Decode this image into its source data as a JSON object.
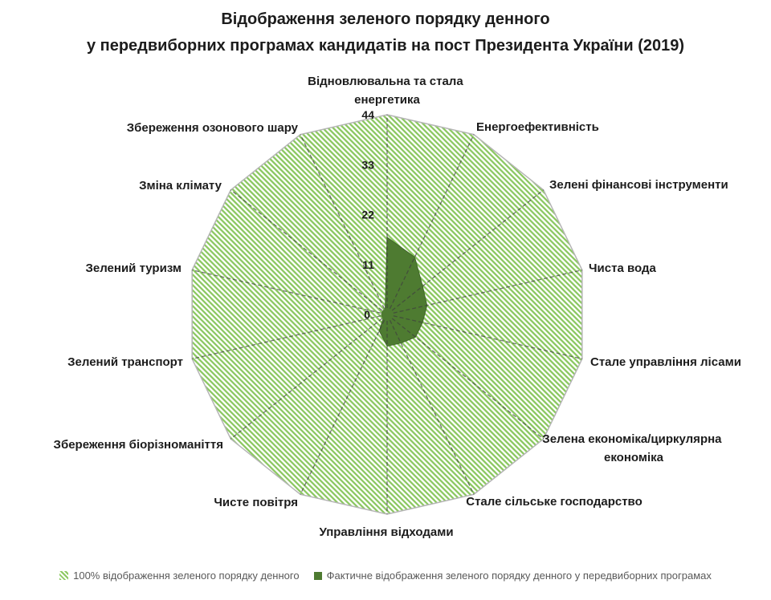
{
  "title": {
    "line1": "Відображення зеленого порядку денного",
    "line2": "у передвиборних програмах кандидатів на пост Президента України (2019)"
  },
  "chart_data": {
    "type": "radar",
    "title": "Відображення зеленого порядку денного у передвиборних програмах кандидатів на пост Президента України (2019)",
    "categories": [
      "Відновлювальна та стала енергетика",
      "Енергоефективність",
      "Зелені фінансові інструменти",
      "Чиста вода",
      "Стале управління лісами",
      "Зелена економіка/циркулярна економіка",
      "Стале сільське господарство",
      "Управління відходами",
      "Чисте повітря",
      "Збереження біорізноманіття",
      "Зелений транспорт",
      "Зелений туризм",
      "Зміна клімату",
      "Збереження озонового шару"
    ],
    "categories_display": [
      [
        "Відновлювальна та стала",
        "енергетика"
      ],
      [
        "Енергоефективність"
      ],
      [
        "Зелені фінансові інструменти"
      ],
      [
        "Чиста вода"
      ],
      [
        "Стале управління лісами"
      ],
      [
        "Зелена економіка/циркулярна",
        "економіка"
      ],
      [
        "Стале сільське господарство"
      ],
      [
        "Управління відходами"
      ],
      [
        "Чисте повітря"
      ],
      [
        "Збереження біорізноманіття"
      ],
      [
        "Зелений транспорт"
      ],
      [
        "Зелений туризм"
      ],
      [
        "Зміна клімату"
      ],
      [
        "Збереження озонового шару"
      ]
    ],
    "series": [
      {
        "name": "100% відображення зеленого порядку денного",
        "fill": "hatched",
        "color": "#8cc862",
        "values": [
          44,
          44,
          44,
          44,
          44,
          44,
          44,
          44,
          44,
          44,
          44,
          44,
          44,
          44
        ]
      },
      {
        "name": "Фактичне відображення зеленого порядку денного у передвиборних програмах",
        "fill": "solid",
        "color": "#4e7b31",
        "values": [
          17,
          14,
          10,
          9,
          8,
          8,
          7,
          7,
          4,
          1,
          1,
          1,
          1,
          1
        ]
      }
    ],
    "radial_axis": {
      "min": 0,
      "max": 44,
      "ticks": [
        0,
        11,
        22,
        33,
        44
      ]
    },
    "grid": "dashed-radial-spokes",
    "legend_position": "bottom"
  },
  "legend": {
    "items": [
      {
        "label": "100% відображення зеленого порядку денного",
        "swatch": "hatched-light-green"
      },
      {
        "label": "Фактичне відображення зеленого порядку денного у передвиборних програмах",
        "swatch": "solid-dark-green"
      }
    ]
  },
  "colors": {
    "light_green": "#8cc862",
    "dark_green": "#4e7b31",
    "dark_green_stroke": "#41672a",
    "axis_line": "#3f3f3f",
    "polygon_outline": "#b5b5b5",
    "legend_text": "#595959",
    "title_text": "#1c1c1c"
  }
}
